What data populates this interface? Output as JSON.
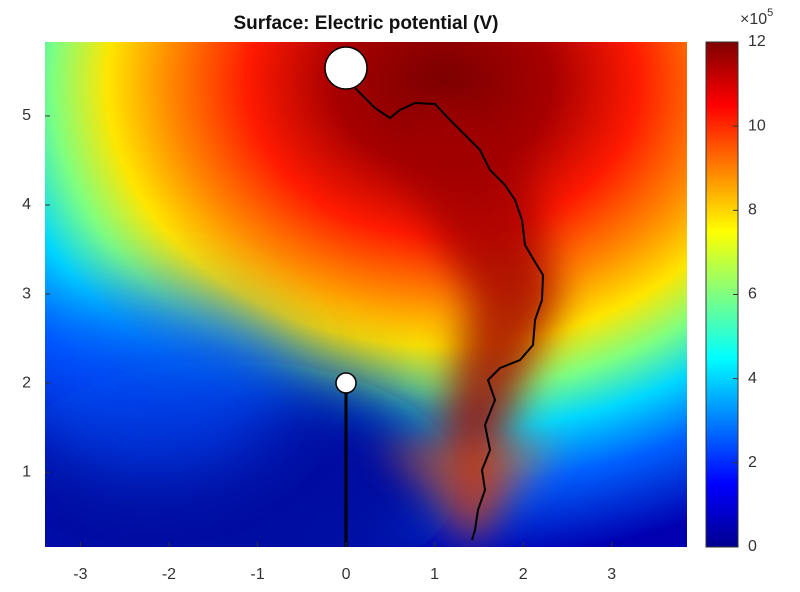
{
  "chart_data": {
    "type": "surface",
    "title": "Surface: Electric potential (V)",
    "xlim": [
      -3.4,
      3.85
    ],
    "ylim": [
      0.16,
      5.83
    ],
    "xticks": [
      -3,
      -2,
      -1,
      0,
      1,
      2,
      3
    ],
    "yticks": [
      1,
      2,
      3,
      4,
      5
    ],
    "colorbar": {
      "clim": [
        0,
        12
      ],
      "ticks": [
        0,
        2,
        4,
        6,
        8,
        10,
        12
      ],
      "multiplier": "×10",
      "exponent": "5",
      "colormap": "jet"
    }
  }
}
